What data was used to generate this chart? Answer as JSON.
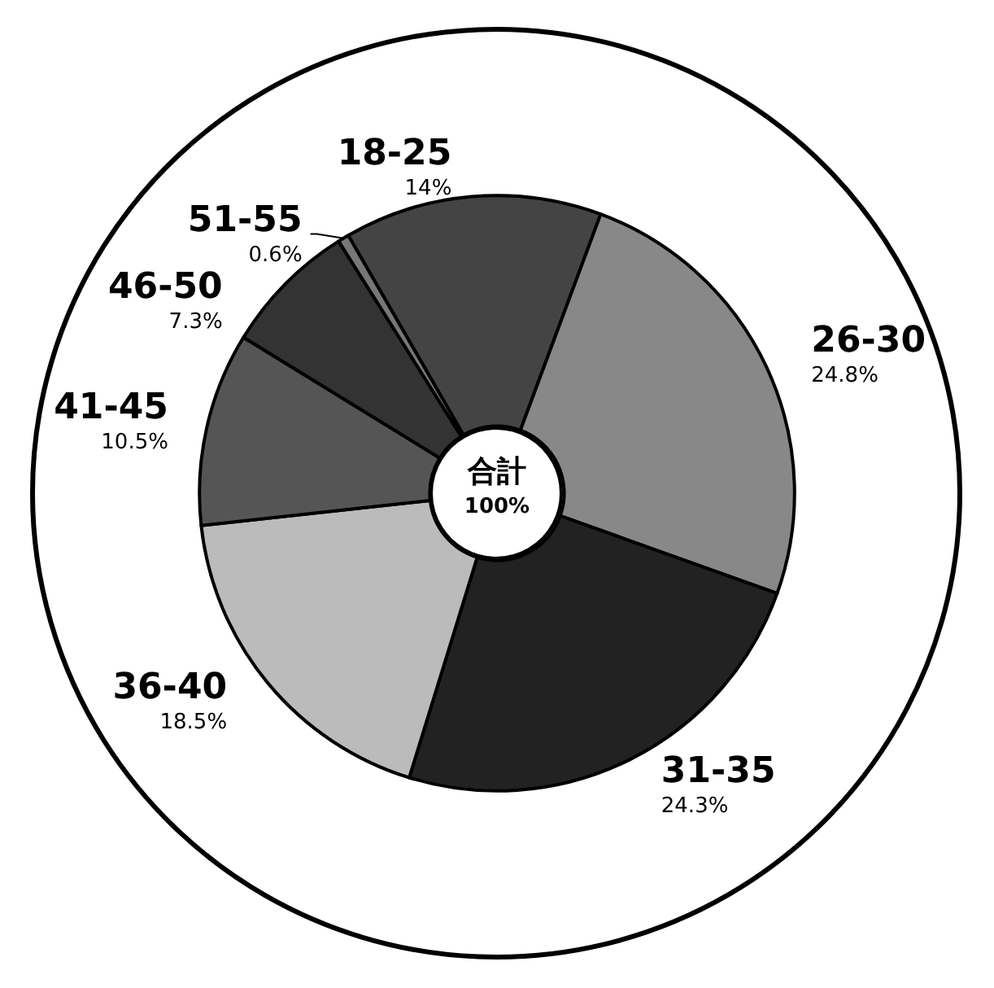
{
  "chart_data": {
    "type": "donut",
    "categories": [
      "18-25",
      "26-30",
      "31-35",
      "36-40",
      "41-45",
      "46-50",
      "51-55"
    ],
    "values": [
      14,
      24.8,
      24.3,
      18.5,
      10.5,
      7.3,
      0.6
    ],
    "colors": [
      "#444444",
      "#888888",
      "#222222",
      "#bbbbbb",
      "#555555",
      "#333333",
      "#777777"
    ],
    "value_labels": [
      "14%",
      "24.8%",
      "24.3%",
      "18.5%",
      "10.5%",
      "7.3%",
      "0.6%"
    ],
    "annotations": [
      "合計",
      "100%"
    ]
  }
}
